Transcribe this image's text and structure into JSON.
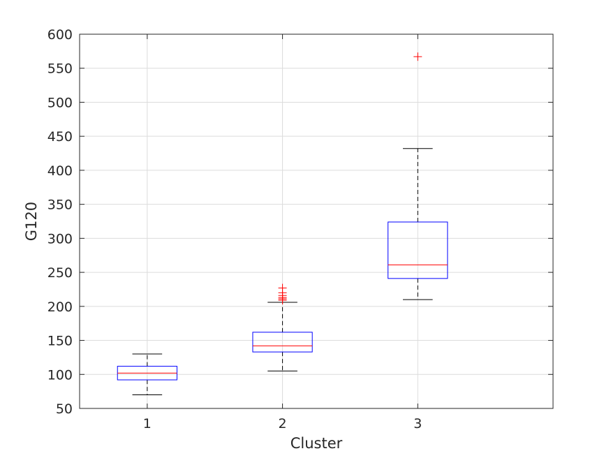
{
  "chart_data": {
    "type": "box",
    "xlabel": "Cluster",
    "ylabel": "G120",
    "ylim": [
      50,
      600
    ],
    "yticks": [
      50,
      100,
      150,
      200,
      250,
      300,
      350,
      400,
      450,
      500,
      550,
      600
    ],
    "categories": [
      "1",
      "2",
      "3"
    ],
    "grid": true,
    "boxes": [
      {
        "category": "1",
        "whisker_low": 70,
        "q1": 92,
        "median": 102,
        "q3": 112,
        "whisker_high": 130,
        "outliers": []
      },
      {
        "category": "2",
        "whisker_low": 105,
        "q1": 133,
        "median": 142,
        "q3": 162,
        "whisker_high": 206,
        "outliers": [
          209,
          211,
          213,
          216,
          220,
          227
        ]
      },
      {
        "category": "3",
        "whisker_low": 210,
        "q1": 241,
        "median": 261,
        "q3": 324,
        "whisker_high": 432,
        "outliers": [
          567
        ]
      }
    ],
    "colors": {
      "box": "#0000ff",
      "median": "#ff0000",
      "whisker": "#000000",
      "outlier": "#ff0000",
      "grid": "#dcdcdc",
      "axis": "#262626"
    }
  }
}
